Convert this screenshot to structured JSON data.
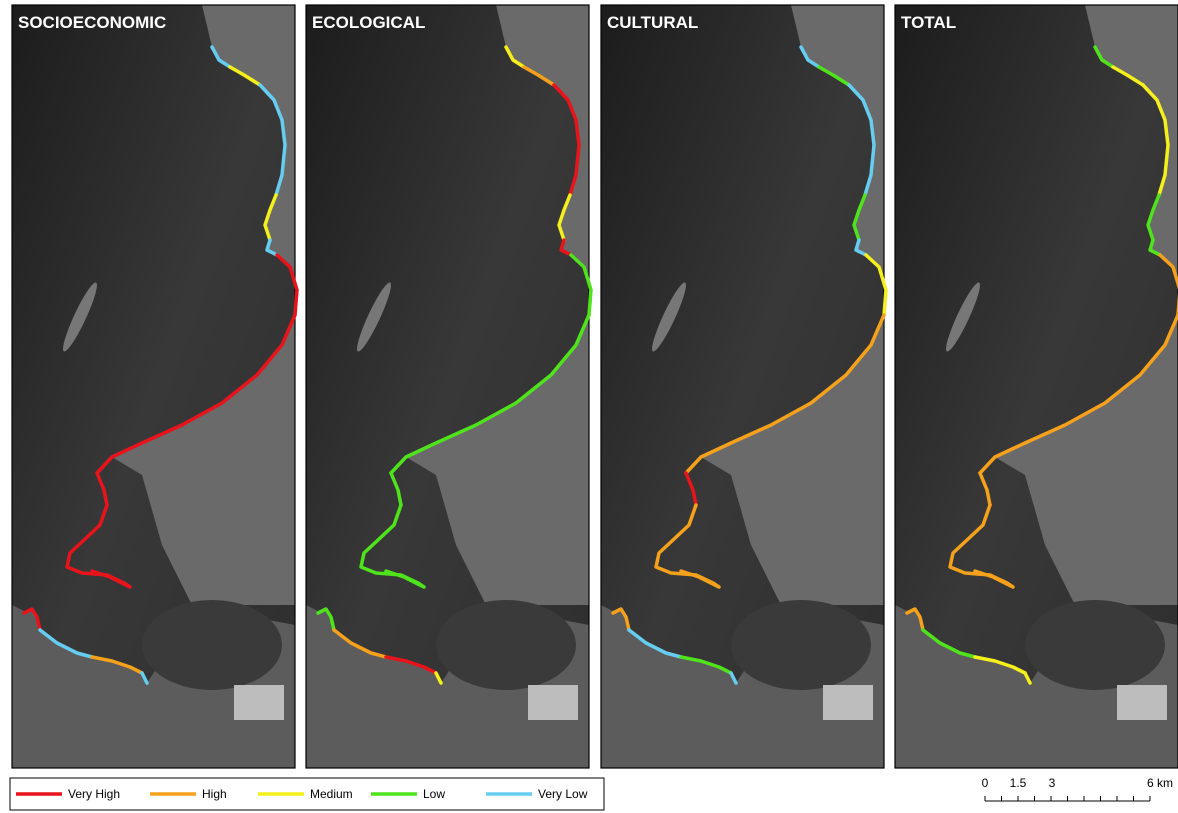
{
  "panels": [
    {
      "title": "SOCIOECONOMIC",
      "north_segments": [
        "Very Low",
        "Medium",
        "Very Low",
        "Medium",
        "Very Low",
        "Very High",
        "Very High",
        "Very High",
        "Very High"
      ],
      "south_segments": [
        "Very High",
        "Very Low",
        "High",
        "Very Low"
      ]
    },
    {
      "title": "ECOLOGICAL",
      "north_segments": [
        "Medium",
        "High",
        "Very High",
        "Medium",
        "Very High",
        "Low",
        "Low",
        "Low",
        "Low"
      ],
      "south_segments": [
        "Low",
        "High",
        "Very High",
        "Medium"
      ]
    },
    {
      "title": "CULTURAL",
      "north_segments": [
        "Very Low",
        "Low",
        "Very Low",
        "Low",
        "Very Low",
        "Medium",
        "High",
        "Very High",
        "High"
      ],
      "south_segments": [
        "High",
        "Very Low",
        "Low",
        "Very Low"
      ]
    },
    {
      "title": "TOTAL",
      "north_segments": [
        "Low",
        "Medium",
        "Medium",
        "Low",
        "Low",
        "High",
        "High",
        "High",
        "High"
      ],
      "south_segments": [
        "High",
        "Low",
        "Medium",
        "Medium"
      ]
    }
  ],
  "legend": [
    {
      "label": "Very High",
      "color": "#e8141b"
    },
    {
      "label": "High",
      "color": "#f5a11c"
    },
    {
      "label": "Medium",
      "color": "#f5f01c"
    },
    {
      "label": "Low",
      "color": "#4fe31c"
    },
    {
      "label": "Very Low",
      "color": "#66cdf0"
    }
  ],
  "scale_bar": {
    "labels": [
      "0",
      "1.5",
      "3",
      "6 km"
    ]
  }
}
